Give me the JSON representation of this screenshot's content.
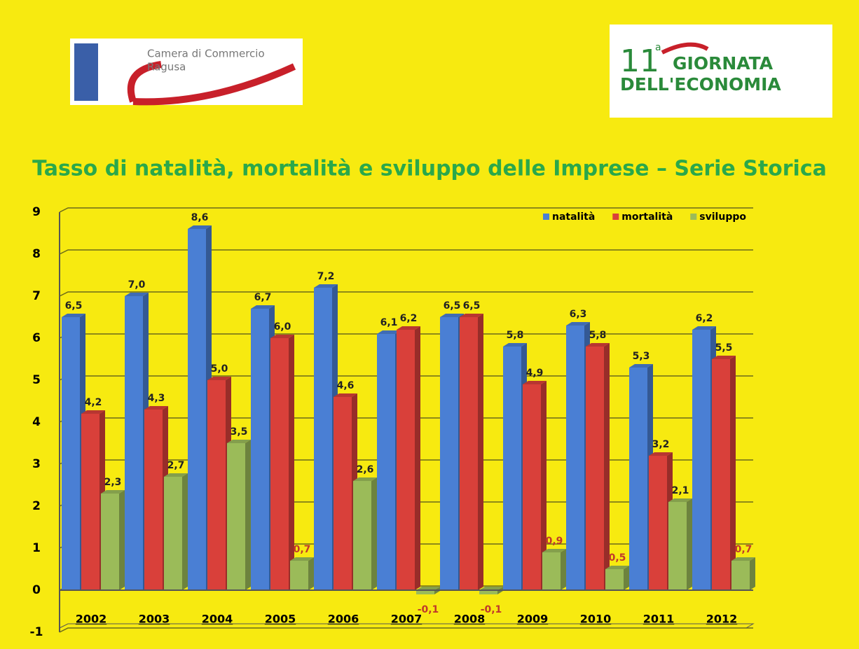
{
  "logos": {
    "left": [
      "Camera di Commercio",
      "Ragusa"
    ],
    "right": {
      "number": "11",
      "sup": "a",
      "line1": "GIORNATA",
      "line2": "DELL'ECONOMIA"
    }
  },
  "chart_data": {
    "type": "bar",
    "title": "Tasso di natalità, mortalità e sviluppo delle Imprese – Serie Storica",
    "categories": [
      "2002",
      "2003",
      "2004",
      "2005",
      "2006",
      "2007",
      "2008",
      "2009",
      "2010",
      "2011",
      "2012"
    ],
    "series": [
      {
        "name": "natalità",
        "color": "#4a7fd4",
        "values": [
          6.5,
          7.0,
          8.6,
          6.7,
          7.2,
          6.1,
          6.5,
          5.8,
          6.3,
          5.3,
          6.2
        ],
        "value_labels": [
          "6,5",
          "7,0",
          "8,6",
          "6,7",
          "7,2",
          "6,1",
          "6,5",
          "5,8",
          "6,3",
          "5,3",
          "6,2"
        ]
      },
      {
        "name": "mortalità",
        "color": "#d9403a",
        "values": [
          4.2,
          4.3,
          5.0,
          6.0,
          4.6,
          6.2,
          6.5,
          4.9,
          5.8,
          3.2,
          5.5
        ],
        "value_labels": [
          "4,2",
          "4,3",
          "5,0",
          "6,0",
          "4,6",
          "6,2",
          "6,5",
          "4,9",
          "5,8",
          "3,2",
          "5,5"
        ]
      },
      {
        "name": "sviluppo",
        "color": "#9bbb59",
        "values": [
          2.3,
          2.7,
          3.5,
          0.7,
          2.6,
          -0.1,
          -0.1,
          0.9,
          0.5,
          2.1,
          0.7
        ],
        "value_labels": [
          "2,3",
          "2,7",
          "3,5",
          "0,7",
          "2,6",
          "-0,1",
          "-0,1",
          "0,9",
          "0,5",
          "2,1",
          "0,7"
        ]
      }
    ],
    "ylim": [
      -1,
      9
    ],
    "yticks": [
      -1,
      0,
      1,
      2,
      3,
      4,
      5,
      6,
      7,
      8,
      9
    ],
    "grid": true,
    "legend": "top-right"
  }
}
